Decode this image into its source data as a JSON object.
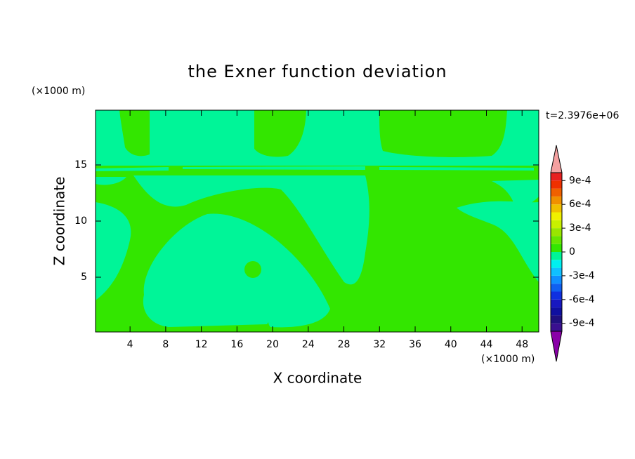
{
  "chart_data": {
    "type": "contour",
    "title": "the Exner function deviation",
    "xlabel": "X coordinate",
    "ylabel": "Z coordinate",
    "xunit": "(×1000 m)",
    "yunit": "(×1000 m)",
    "annotation": "t=2.3976e+06",
    "xlim": [
      0.125,
      49.875
    ],
    "ylim": [
      0.125,
      19.875
    ],
    "xticks": [
      4,
      8,
      12,
      16,
      20,
      24,
      28,
      32,
      36,
      40,
      44,
      48
    ],
    "yticks": [
      5,
      10,
      15
    ],
    "levels": [
      -0.001,
      -0.0009,
      -0.0008,
      -0.0007,
      -0.0006,
      -0.0005,
      -0.0004,
      -0.0003,
      -0.0002,
      -0.0001,
      0,
      0.0001,
      0.0002,
      0.0003,
      0.0004,
      0.0005,
      0.0006,
      0.0007,
      0.0008,
      0.0009,
      0.001
    ],
    "colors": [
      "#3a1090",
      "#201080",
      "#1010a0",
      "#1818c0",
      "#1030e0",
      "#1060f0",
      "#1090ff",
      "#10c0ff",
      "#00f0f0",
      "#00f598",
      "#33e600",
      "#66e600",
      "#99e600",
      "#c8f000",
      "#f0f000",
      "#f0c000",
      "#f09000",
      "#f06000",
      "#f03000",
      "#e82020"
    ],
    "extend_colors": {
      "min": "#8a00a8",
      "max": "#f4a0a0"
    },
    "colorbar_ticks": [
      {
        "value": 0.0009,
        "label": "9e-4"
      },
      {
        "value": 0.0006,
        "label": "6e-4"
      },
      {
        "value": 0.0003,
        "label": "3e-4"
      },
      0,
      {
        "value": -0.0003,
        "label": "-3e-4"
      },
      {
        "value": -0.0006,
        "label": "-6e-4"
      },
      {
        "value": -0.0009,
        "label": "-9e-4"
      }
    ]
  }
}
